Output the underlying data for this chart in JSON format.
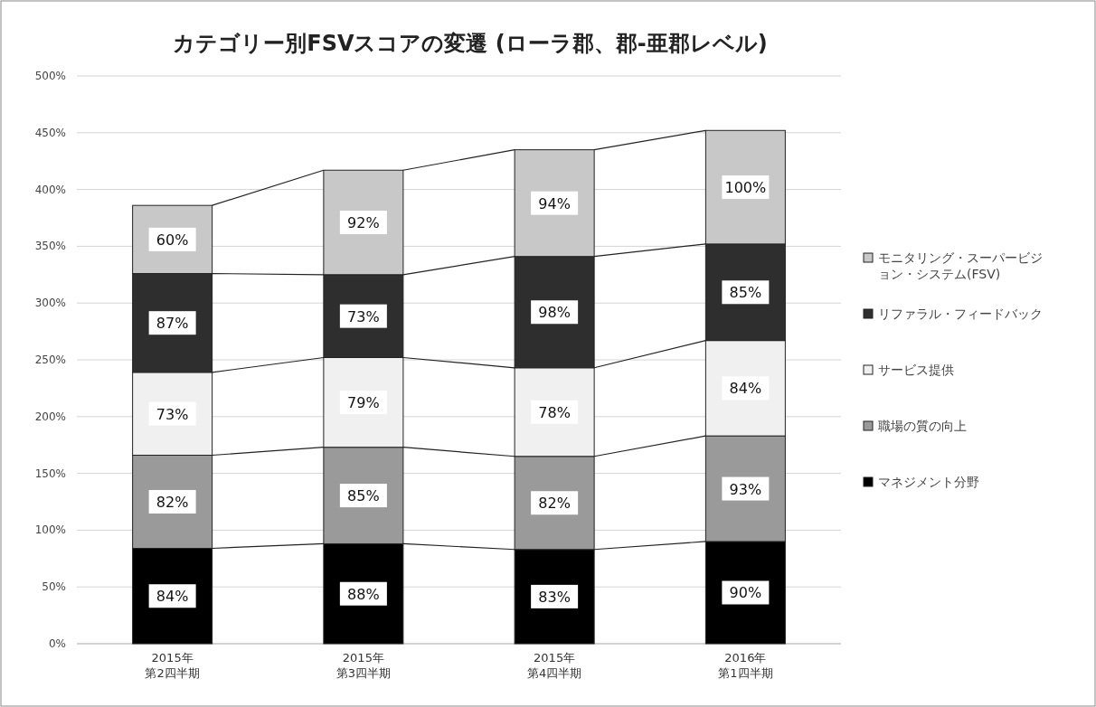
{
  "chart_data": {
    "type": "bar",
    "stacked": true,
    "title": "カテゴリー別FSVスコアの変遷 (ローラ郡、郡-亜郡レベル)",
    "categories": [
      "2015年第2四半期",
      "2015年第3四半期",
      "2015年第4四半期",
      "2016年第1四半期"
    ],
    "series": [
      {
        "name": "マネジメント分野",
        "color": "#000000",
        "values": [
          84,
          88,
          83,
          90
        ],
        "value_labels": [
          "84%",
          "88%",
          "83%",
          "90%"
        ]
      },
      {
        "name": "職場の質の向上",
        "color": "#9a9a9a",
        "values": [
          82,
          85,
          82,
          93
        ],
        "value_labels": [
          "82%",
          "85%",
          "82%",
          "93%"
        ]
      },
      {
        "name": "サービス提供",
        "color": "#f0f0f0",
        "values": [
          73,
          79,
          78,
          84
        ],
        "value_labels": [
          "73%",
          "79%",
          "78%",
          "84%"
        ]
      },
      {
        "name": "リファラル・フィードバック",
        "color": "#2e2e2e",
        "values": [
          87,
          73,
          98,
          85
        ],
        "value_labels": [
          "87%",
          "73%",
          "98%",
          "85%"
        ]
      },
      {
        "name": "モニタリング・スーパービジョン・システム(FSV)",
        "color": "#c8c8c8",
        "values": [
          60,
          92,
          94,
          100
        ],
        "value_labels": [
          "60%",
          "92%",
          "94%",
          "100%"
        ]
      }
    ],
    "ylim": [
      0,
      500
    ],
    "yticks": [
      {
        "value": 0,
        "label": "0%"
      },
      {
        "value": 50,
        "label": "50%"
      },
      {
        "value": 100,
        "label": "100%"
      },
      {
        "value": 150,
        "label": "150%"
      },
      {
        "value": 200,
        "label": "200%"
      },
      {
        "value": 250,
        "label": "250%"
      },
      {
        "value": 300,
        "label": "300%"
      },
      {
        "value": 350,
        "label": "350%"
      },
      {
        "value": 400,
        "label": "400%"
      },
      {
        "value": 450,
        "label": "450%"
      },
      {
        "value": 500,
        "label": "500%"
      }
    ],
    "grid": "y",
    "legend": "right"
  }
}
